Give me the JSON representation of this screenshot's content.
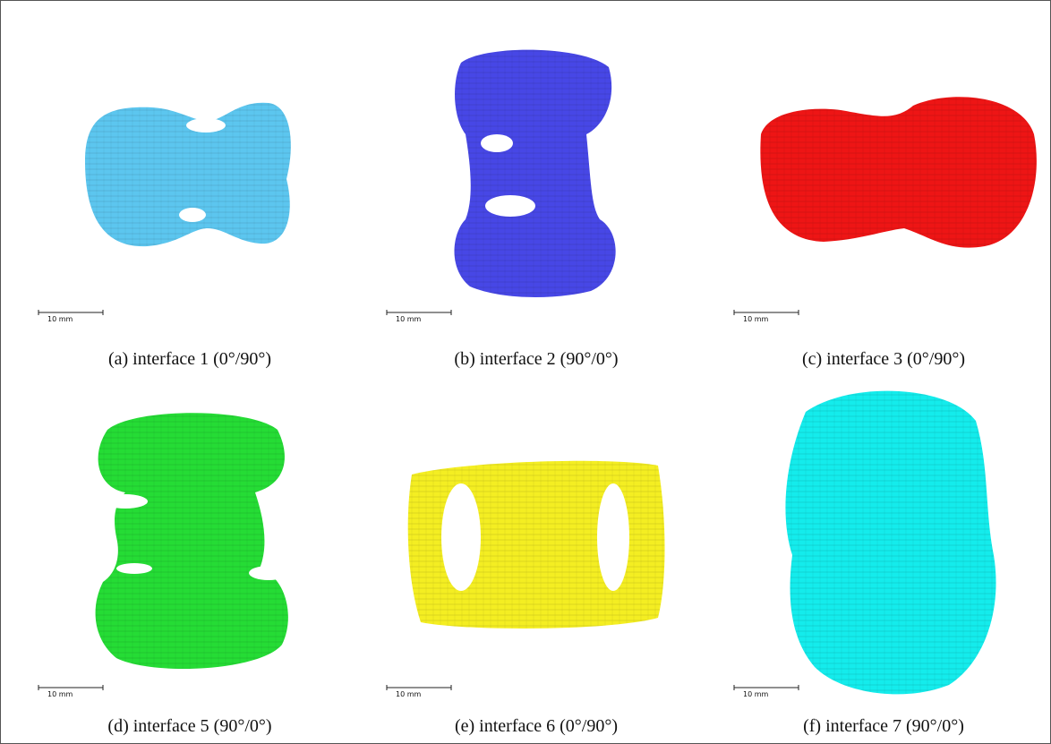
{
  "panels": [
    {
      "scale_bar": "10 mm",
      "caption": "(a) interface 1 (0°/90°)"
    },
    {
      "scale_bar": "10 mm",
      "caption": "(b) interface 2 (90°/0°)"
    },
    {
      "scale_bar": "10 mm",
      "caption": "(c) interface 3 (0°/90°)"
    },
    {
      "scale_bar": "10 mm",
      "caption": "(d) interface 5 (90°/0°)"
    },
    {
      "scale_bar": "10 mm",
      "caption": "(e) interface 6 (0°/90°)"
    },
    {
      "scale_bar": "10 mm",
      "caption": "(f) interface 7 (90°/0°)"
    }
  ]
}
